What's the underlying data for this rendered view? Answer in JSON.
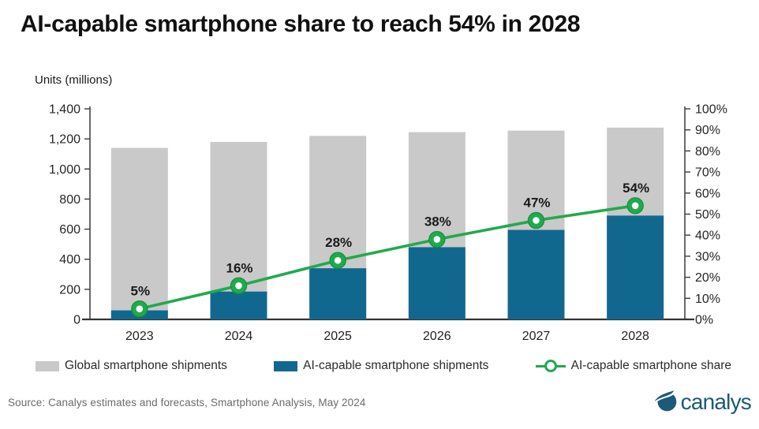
{
  "title": "AI-capable smartphone share to reach 54% in 2028",
  "chart_data": {
    "type": "bar+line",
    "title": "AI-capable smartphone share to reach 54% in 2028",
    "units_label": "Units (millions)",
    "categories": [
      "2023",
      "2024",
      "2025",
      "2026",
      "2027",
      "2028"
    ],
    "series": [
      {
        "name": "Global smartphone shipments",
        "type": "bar",
        "axis": "left",
        "color": "#c9c9c9",
        "values": [
          1140,
          1180,
          1220,
          1245,
          1255,
          1275
        ]
      },
      {
        "name": "AI-capable smartphone shipments",
        "type": "bar",
        "axis": "left",
        "color": "#11688f",
        "values": [
          60,
          185,
          340,
          480,
          595,
          690
        ]
      },
      {
        "name": "AI-capable smartphone share",
        "type": "line",
        "axis": "right",
        "color": "#22a94e",
        "marker_edge_color": "#149441",
        "marker_fill_inner": "#ffffff",
        "values": [
          5,
          16,
          28,
          38,
          47,
          54
        ],
        "point_labels": [
          "5%",
          "16%",
          "28%",
          "38%",
          "47%",
          "54%"
        ]
      }
    ],
    "left_axis": {
      "min": 0,
      "max": 1400,
      "step": 200,
      "tick_labels": [
        "0",
        "200",
        "400",
        "600",
        "800",
        "1,000",
        "1,200",
        "1,400"
      ]
    },
    "right_axis": {
      "min": 0,
      "max": 100,
      "step": 10,
      "tick_labels": [
        "0%",
        "10%",
        "20%",
        "30%",
        "40%",
        "50%",
        "60%",
        "70%",
        "80%",
        "90%",
        "100%"
      ]
    },
    "grid": "off",
    "legend_position": "bottom",
    "axis_color": "#3a3a3a",
    "tick_label_color": "#262626",
    "data_label_color": "#1a1a1a"
  },
  "legend": {
    "items": [
      {
        "label": "Global smartphone shipments",
        "swatch_color": "#c9c9c9"
      },
      {
        "label": "AI-capable smartphone shipments",
        "swatch_color": "#11688f"
      },
      {
        "label": "AI-capable smartphone share",
        "swatch_color": "#22a94e"
      }
    ]
  },
  "footer": {
    "source": "Source:  Canalys estimates and forecasts, Smartphone  Analysis, May 2024",
    "logo_text": "canalys",
    "logo_color": "#1d5a77"
  }
}
